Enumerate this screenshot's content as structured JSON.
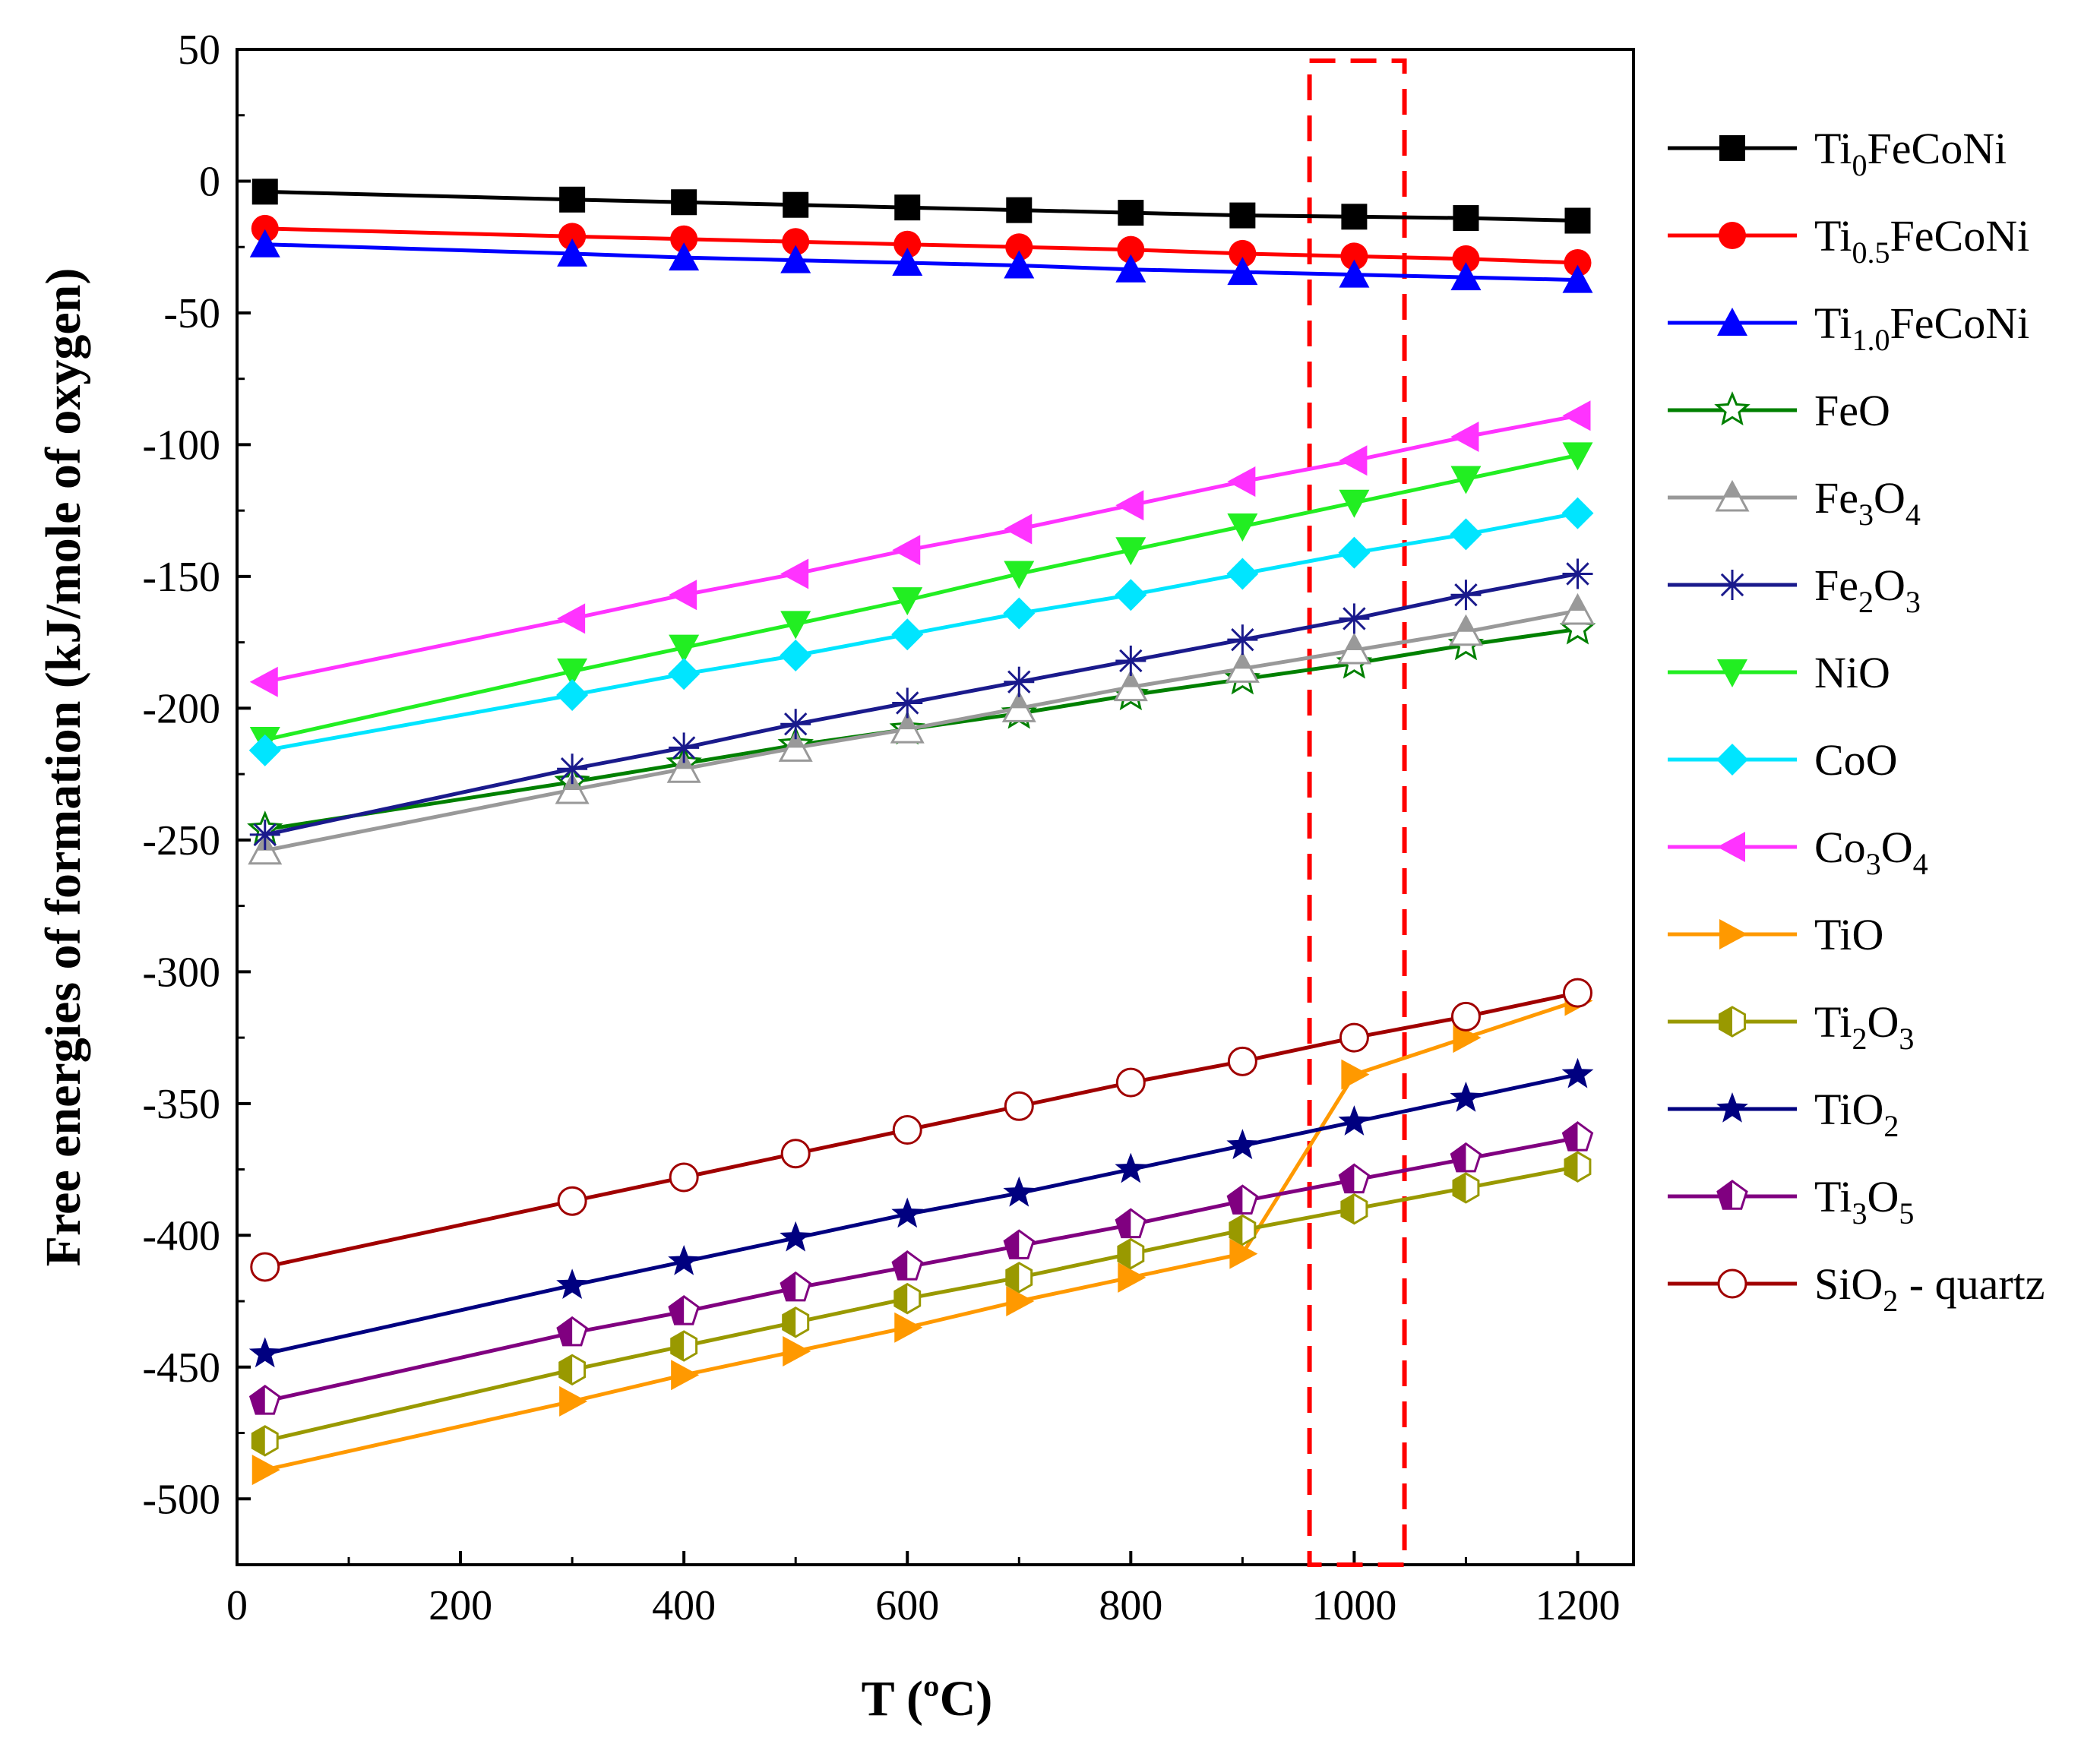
{
  "chart_data": {
    "type": "line",
    "title": "",
    "xlabel": "T (ºC)",
    "ylabel": "Free energies of formation (kJ/mole of oxygen)",
    "xlim": [
      0,
      1250
    ],
    "ylim": [
      -525,
      50
    ],
    "xticks": [
      0,
      200,
      400,
      600,
      800,
      1000,
      1200
    ],
    "yticks": [
      50,
      0,
      -50,
      -100,
      -150,
      -200,
      -250,
      -300,
      -350,
      -400,
      -450,
      -500
    ],
    "x": [
      25,
      300,
      400,
      500,
      600,
      700,
      800,
      900,
      1000,
      1100,
      1200
    ],
    "legend_position": "right",
    "highlight_region": {
      "x_from": 960,
      "x_to": 1045,
      "style": "red dashed box"
    },
    "series": [
      {
        "name": "Ti0FeCoNi",
        "label_base": "Ti",
        "label_sub": "0",
        "label_rest": "FeCoNi",
        "color": "#000000",
        "marker": "square",
        "values": [
          -4,
          -7,
          -8,
          -9,
          -10,
          -11,
          -12,
          -13,
          -13.5,
          -14,
          -15
        ]
      },
      {
        "name": "Ti0.5FeCoNi",
        "label_base": "Ti",
        "label_sub": "0.5",
        "label_rest": "FeCoNi",
        "color": "#ff0000",
        "marker": "circle",
        "values": [
          -18,
          -21,
          -22,
          -23,
          -24,
          -25,
          -26,
          -27.5,
          -28.5,
          -29.5,
          -31
        ]
      },
      {
        "name": "Ti1.0FeCoNi",
        "label_base": "Ti",
        "label_sub": "1.0",
        "label_rest": "FeCoNi",
        "color": "#0000ff",
        "marker": "triangle-up",
        "values": [
          -24,
          -27.5,
          -29,
          -30,
          -31,
          -32,
          -33.5,
          -34.5,
          -35.5,
          -36.5,
          -37.5
        ]
      },
      {
        "name": "FeO",
        "label_base": "FeO",
        "color": "#008000",
        "marker": "star-open",
        "values": [
          -246,
          -228,
          -221,
          -214,
          -208,
          -202,
          -195,
          -189,
          -183,
          -176,
          -170
        ]
      },
      {
        "name": "Fe3O4",
        "label_base": "Fe",
        "label_sub": "3",
        "label_rest": "O",
        "label_sub2": "4",
        "color": "#999999",
        "marker": "triangle-up-half",
        "values": [
          -254,
          -231,
          -223,
          -215,
          -208,
          -200,
          -192,
          -185,
          -178,
          -171,
          -163
        ]
      },
      {
        "name": "Fe2O3",
        "label_base": "Fe",
        "label_sub": "2",
        "label_rest": "O",
        "label_sub2": "3",
        "color": "#1a1a8c",
        "marker": "asterisk",
        "values": [
          -248,
          -223,
          -215,
          -206,
          -198,
          -190,
          -182,
          -174,
          -166,
          -157,
          -149
        ]
      },
      {
        "name": "NiO",
        "label_base": "NiO",
        "color": "#22ee22",
        "marker": "triangle-down",
        "values": [
          -212,
          -186,
          -177,
          -168,
          -159,
          -149,
          -140,
          -131,
          -122,
          -113,
          -104
        ]
      },
      {
        "name": "CoO",
        "label_base": "CoO",
        "color": "#00e5ff",
        "marker": "diamond",
        "values": [
          -216,
          -195,
          -187,
          -180,
          -172,
          -164,
          -157,
          -149,
          -141,
          -134,
          -126
        ]
      },
      {
        "name": "Co3O4",
        "label_base": "Co",
        "label_sub": "3",
        "label_rest": "O",
        "label_sub2": "4",
        "color": "#ff33ff",
        "marker": "triangle-left",
        "values": [
          -190,
          -166,
          -157,
          -149,
          -140,
          -132,
          -123,
          -114,
          -106,
          -97,
          -89
        ]
      },
      {
        "name": "TiO",
        "label_base": "TiO",
        "color": "#ff9900",
        "marker": "triangle-right",
        "values": [
          -489,
          -463,
          -453,
          -444,
          -435,
          -425,
          -416,
          -407,
          -339,
          -325,
          -311
        ]
      },
      {
        "name": "Ti2O3",
        "label_base": "Ti",
        "label_sub": "2",
        "label_rest": "O",
        "label_sub2": "3",
        "color": "#999900",
        "marker": "hexagon-half",
        "values": [
          -478,
          -451,
          -442,
          -433,
          -424,
          -416,
          -407,
          -398,
          -390,
          -382,
          -374
        ]
      },
      {
        "name": "TiO2",
        "label_base": "TiO",
        "label_sub": "2",
        "color": "#000080",
        "marker": "star",
        "values": [
          -445,
          -419,
          -410,
          -401,
          -392,
          -384,
          -375,
          -366,
          -357,
          -348,
          -339
        ]
      },
      {
        "name": "Ti3O5",
        "label_base": "Ti",
        "label_sub": "3",
        "label_rest": "O",
        "label_sub2": "5",
        "color": "#800080",
        "marker": "pentagon-half",
        "values": [
          -463,
          -437,
          -429,
          -420,
          -412,
          -404,
          -396,
          -387,
          -379,
          -371,
          -363
        ]
      },
      {
        "name": "SiO2 - quartz",
        "label_base": "SiO",
        "label_sub": "2",
        "label_rest": " - quartz",
        "color": "#a00000",
        "marker": "circle-open",
        "values": [
          -412,
          -387,
          -378,
          -369,
          -360,
          -351,
          -342,
          -334,
          -325,
          -317,
          -308
        ]
      }
    ]
  }
}
